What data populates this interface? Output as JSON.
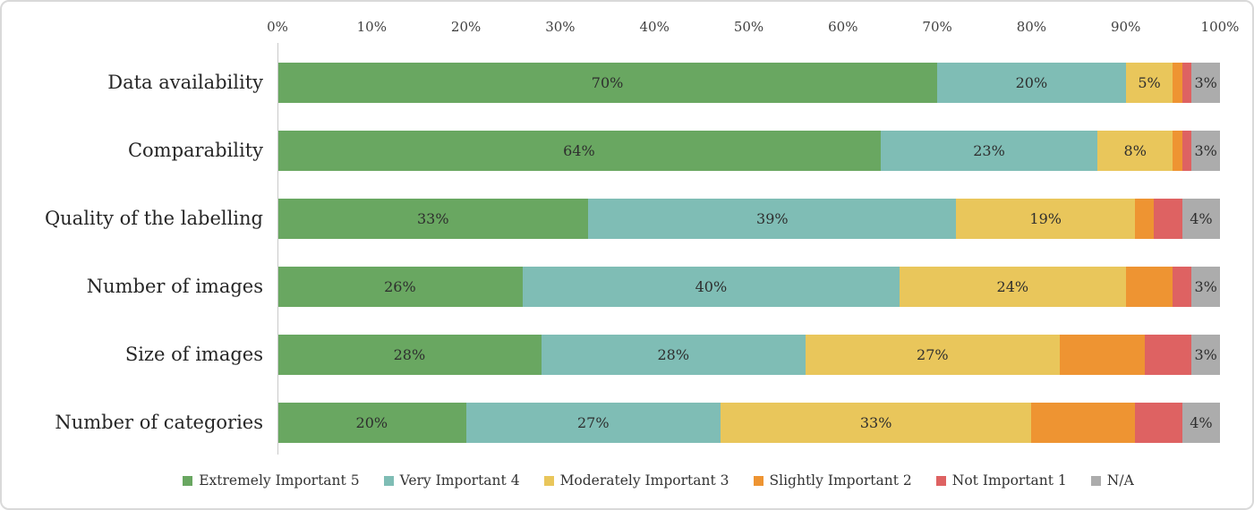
{
  "chart_data": {
    "type": "bar",
    "orientation": "horizontal",
    "stacked": true,
    "categories": [
      "Data availability",
      "Comparability",
      "Quality of the labelling",
      "Number of images",
      "Size of images",
      "Number of categories"
    ],
    "series": [
      {
        "name": "Extremely Important 5",
        "color": "#69a761",
        "show_labels": true,
        "values": [
          70,
          64,
          33,
          26,
          28,
          20
        ]
      },
      {
        "name": "Very Important 4",
        "color": "#7fbdb5",
        "show_labels": true,
        "values": [
          20,
          23,
          39,
          40,
          28,
          27
        ]
      },
      {
        "name": "Moderately Important 3",
        "color": "#e9c65b",
        "show_labels": true,
        "values": [
          5,
          8,
          19,
          24,
          27,
          33
        ]
      },
      {
        "name": "Slightly Important 2",
        "color": "#ee9432",
        "show_labels": false,
        "values": [
          1,
          1,
          2,
          5,
          9,
          11
        ]
      },
      {
        "name": "Not Important 1",
        "color": "#de6262",
        "show_labels": false,
        "values": [
          1,
          1,
          3,
          2,
          5,
          5
        ]
      },
      {
        "name": "N/A",
        "color": "#acacac",
        "show_labels": true,
        "values": [
          3,
          3,
          4,
          3,
          3,
          4
        ]
      }
    ],
    "x_axis": {
      "min": 0,
      "max": 100,
      "ticks": [
        "0%",
        "10%",
        "20%",
        "30%",
        "40%",
        "50%",
        "60%",
        "70%",
        "80%",
        "90%",
        "100%"
      ]
    },
    "label_format": "percent",
    "label_min": 3,
    "legend_position": "bottom",
    "grid": false
  }
}
